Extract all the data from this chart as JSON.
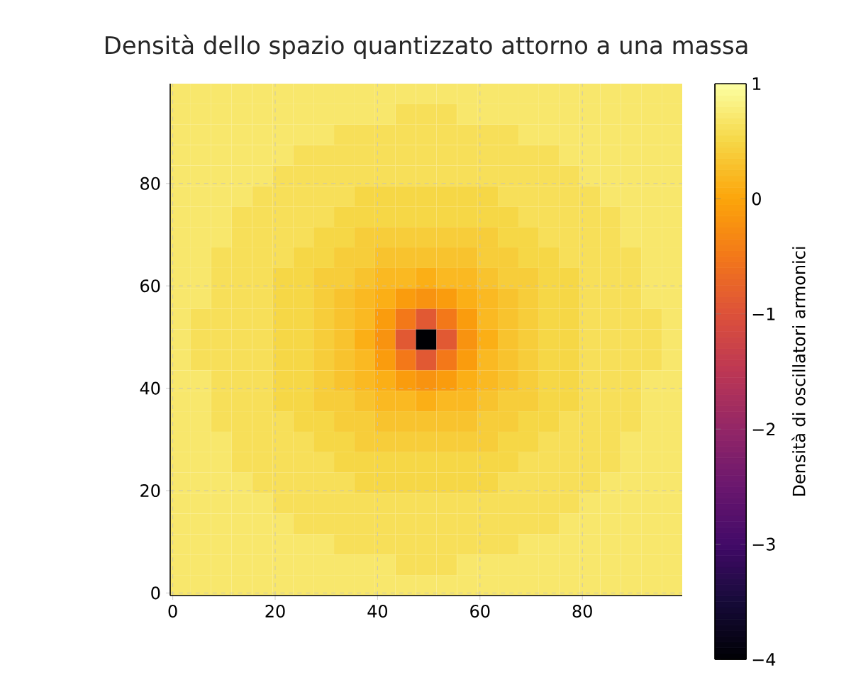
{
  "chart_data": {
    "type": "heatmap",
    "title": "Densità dello spazio quantizzato attorno a una massa",
    "clabel": "Densità di oscillatori armonici",
    "xlim": [
      -0.5,
      99.5
    ],
    "ylim": [
      -0.5,
      99.5
    ],
    "xticks": [
      0,
      20,
      40,
      60,
      80
    ],
    "yticks": [
      0,
      20,
      40,
      60,
      80
    ],
    "grid": true,
    "clim": [
      -4,
      1
    ],
    "cticks": [
      {
        "value": -4,
        "label": "−4"
      },
      {
        "value": -3,
        "label": "−3"
      },
      {
        "value": -2,
        "label": "−2"
      },
      {
        "value": -1,
        "label": "−1"
      },
      0,
      1
    ],
    "cells": [
      [
        0.7,
        0.7,
        0.7,
        0.7,
        0.7,
        0.7,
        0.7,
        0.7,
        0.7,
        0.7,
        0.7,
        0.7,
        0.7,
        0.7,
        0.7,
        0.7,
        0.7,
        0.7,
        0.7,
        0.7,
        0.7,
        0.7,
        0.7,
        0.7,
        0.7
      ],
      [
        0.7,
        0.7,
        0.7,
        0.7,
        0.7,
        0.7,
        0.7,
        0.7,
        0.7,
        0.7,
        0.7,
        0.6,
        0.6,
        0.6,
        0.7,
        0.7,
        0.7,
        0.7,
        0.7,
        0.7,
        0.7,
        0.7,
        0.7,
        0.7,
        0.7
      ],
      [
        0.7,
        0.7,
        0.7,
        0.7,
        0.7,
        0.7,
        0.7,
        0.7,
        0.6,
        0.6,
        0.6,
        0.6,
        0.6,
        0.6,
        0.6,
        0.6,
        0.6,
        0.7,
        0.7,
        0.7,
        0.7,
        0.7,
        0.7,
        0.7,
        0.7
      ],
      [
        0.7,
        0.7,
        0.7,
        0.7,
        0.7,
        0.7,
        0.6,
        0.6,
        0.6,
        0.6,
        0.6,
        0.6,
        0.6,
        0.6,
        0.6,
        0.6,
        0.6,
        0.6,
        0.6,
        0.7,
        0.7,
        0.7,
        0.7,
        0.7,
        0.7
      ],
      [
        0.7,
        0.7,
        0.7,
        0.7,
        0.7,
        0.6,
        0.6,
        0.6,
        0.6,
        0.6,
        0.6,
        0.6,
        0.6,
        0.6,
        0.6,
        0.6,
        0.6,
        0.6,
        0.6,
        0.6,
        0.7,
        0.7,
        0.7,
        0.7,
        0.7
      ],
      [
        0.7,
        0.7,
        0.7,
        0.7,
        0.6,
        0.6,
        0.6,
        0.6,
        0.6,
        0.5,
        0.5,
        0.5,
        0.5,
        0.5,
        0.5,
        0.5,
        0.6,
        0.6,
        0.6,
        0.6,
        0.6,
        0.7,
        0.7,
        0.7,
        0.7
      ],
      [
        0.7,
        0.7,
        0.7,
        0.6,
        0.6,
        0.6,
        0.6,
        0.6,
        0.5,
        0.5,
        0.5,
        0.5,
        0.5,
        0.5,
        0.5,
        0.5,
        0.5,
        0.6,
        0.6,
        0.6,
        0.6,
        0.6,
        0.7,
        0.7,
        0.7
      ],
      [
        0.7,
        0.7,
        0.7,
        0.6,
        0.6,
        0.6,
        0.6,
        0.5,
        0.5,
        0.4,
        0.4,
        0.4,
        0.4,
        0.4,
        0.4,
        0.4,
        0.5,
        0.5,
        0.6,
        0.6,
        0.6,
        0.6,
        0.7,
        0.7,
        0.7
      ],
      [
        0.7,
        0.7,
        0.6,
        0.6,
        0.6,
        0.6,
        0.5,
        0.5,
        0.4,
        0.4,
        0.3,
        0.3,
        0.3,
        0.3,
        0.3,
        0.4,
        0.4,
        0.5,
        0.5,
        0.6,
        0.6,
        0.6,
        0.6,
        0.7,
        0.7
      ],
      [
        0.7,
        0.7,
        0.6,
        0.6,
        0.6,
        0.5,
        0.5,
        0.4,
        0.4,
        0.3,
        0.2,
        0.2,
        0.1,
        0.2,
        0.2,
        0.3,
        0.4,
        0.4,
        0.5,
        0.5,
        0.6,
        0.6,
        0.6,
        0.7,
        0.7
      ],
      [
        0.7,
        0.7,
        0.6,
        0.6,
        0.6,
        0.5,
        0.5,
        0.4,
        0.3,
        0.2,
        0.1,
        -0.1,
        -0.2,
        -0.1,
        0.1,
        0.2,
        0.3,
        0.4,
        0.5,
        0.5,
        0.6,
        0.6,
        0.6,
        0.7,
        0.7
      ],
      [
        0.7,
        0.6,
        0.6,
        0.6,
        0.6,
        0.5,
        0.5,
        0.4,
        0.3,
        0.2,
        -0.1,
        -0.5,
        -0.9,
        -0.5,
        -0.1,
        0.2,
        0.3,
        0.4,
        0.5,
        0.5,
        0.6,
        0.6,
        0.6,
        0.6,
        0.7
      ],
      [
        0.7,
        0.6,
        0.6,
        0.6,
        0.6,
        0.5,
        0.5,
        0.4,
        0.3,
        0.1,
        -0.2,
        -0.9,
        -4,
        -0.9,
        -0.2,
        0.1,
        0.3,
        0.4,
        0.5,
        0.5,
        0.6,
        0.6,
        0.6,
        0.6,
        0.7
      ],
      [
        0.7,
        0.6,
        0.6,
        0.6,
        0.6,
        0.5,
        0.5,
        0.4,
        0.3,
        0.2,
        -0.1,
        -0.5,
        -0.9,
        -0.5,
        -0.1,
        0.2,
        0.3,
        0.4,
        0.5,
        0.5,
        0.6,
        0.6,
        0.6,
        0.6,
        0.7
      ],
      [
        0.7,
        0.7,
        0.6,
        0.6,
        0.6,
        0.5,
        0.5,
        0.4,
        0.3,
        0.2,
        0.1,
        -0.1,
        -0.2,
        -0.1,
        0.1,
        0.2,
        0.3,
        0.4,
        0.5,
        0.5,
        0.6,
        0.6,
        0.6,
        0.7,
        0.7
      ],
      [
        0.7,
        0.7,
        0.6,
        0.6,
        0.6,
        0.5,
        0.5,
        0.4,
        0.4,
        0.3,
        0.2,
        0.2,
        0.1,
        0.2,
        0.2,
        0.3,
        0.4,
        0.4,
        0.5,
        0.5,
        0.6,
        0.6,
        0.6,
        0.7,
        0.7
      ],
      [
        0.7,
        0.7,
        0.6,
        0.6,
        0.6,
        0.6,
        0.5,
        0.5,
        0.4,
        0.4,
        0.3,
        0.3,
        0.3,
        0.3,
        0.3,
        0.4,
        0.4,
        0.5,
        0.5,
        0.6,
        0.6,
        0.6,
        0.6,
        0.7,
        0.7
      ],
      [
        0.7,
        0.7,
        0.7,
        0.6,
        0.6,
        0.6,
        0.6,
        0.5,
        0.5,
        0.4,
        0.4,
        0.4,
        0.4,
        0.4,
        0.4,
        0.4,
        0.5,
        0.5,
        0.6,
        0.6,
        0.6,
        0.6,
        0.7,
        0.7,
        0.7
      ],
      [
        0.7,
        0.7,
        0.7,
        0.6,
        0.6,
        0.6,
        0.6,
        0.6,
        0.5,
        0.5,
        0.5,
        0.5,
        0.5,
        0.5,
        0.5,
        0.5,
        0.5,
        0.6,
        0.6,
        0.6,
        0.6,
        0.6,
        0.7,
        0.7,
        0.7
      ],
      [
        0.7,
        0.7,
        0.7,
        0.7,
        0.6,
        0.6,
        0.6,
        0.6,
        0.6,
        0.5,
        0.5,
        0.5,
        0.5,
        0.5,
        0.5,
        0.5,
        0.6,
        0.6,
        0.6,
        0.6,
        0.6,
        0.7,
        0.7,
        0.7,
        0.7
      ],
      [
        0.7,
        0.7,
        0.7,
        0.7,
        0.7,
        0.6,
        0.6,
        0.6,
        0.6,
        0.6,
        0.6,
        0.6,
        0.6,
        0.6,
        0.6,
        0.6,
        0.6,
        0.6,
        0.6,
        0.6,
        0.7,
        0.7,
        0.7,
        0.7,
        0.7
      ],
      [
        0.7,
        0.7,
        0.7,
        0.7,
        0.7,
        0.7,
        0.6,
        0.6,
        0.6,
        0.6,
        0.6,
        0.6,
        0.6,
        0.6,
        0.6,
        0.6,
        0.6,
        0.6,
        0.6,
        0.7,
        0.7,
        0.7,
        0.7,
        0.7,
        0.7
      ],
      [
        0.7,
        0.7,
        0.7,
        0.7,
        0.7,
        0.7,
        0.7,
        0.7,
        0.6,
        0.6,
        0.6,
        0.6,
        0.6,
        0.6,
        0.6,
        0.6,
        0.6,
        0.7,
        0.7,
        0.7,
        0.7,
        0.7,
        0.7,
        0.7,
        0.7
      ],
      [
        0.7,
        0.7,
        0.7,
        0.7,
        0.7,
        0.7,
        0.7,
        0.7,
        0.7,
        0.7,
        0.7,
        0.6,
        0.6,
        0.6,
        0.7,
        0.7,
        0.7,
        0.7,
        0.7,
        0.7,
        0.7,
        0.7,
        0.7,
        0.7,
        0.7
      ],
      [
        0.7,
        0.7,
        0.7,
        0.7,
        0.7,
        0.7,
        0.7,
        0.7,
        0.7,
        0.7,
        0.7,
        0.7,
        0.7,
        0.7,
        0.7,
        0.7,
        0.7,
        0.7,
        0.7,
        0.7,
        0.7,
        0.7,
        0.7,
        0.7,
        0.7
      ]
    ]
  }
}
